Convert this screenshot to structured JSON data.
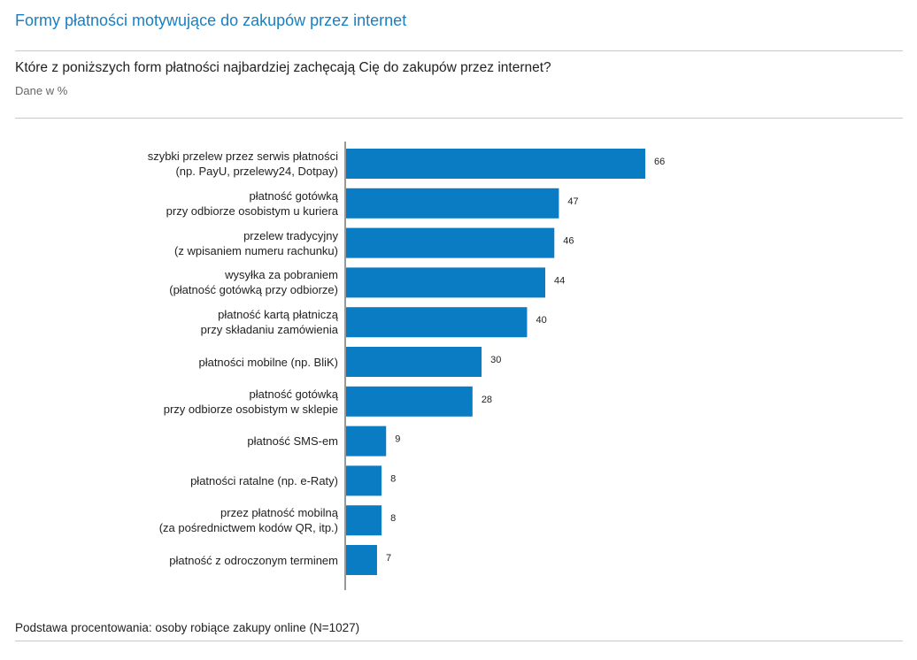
{
  "header": {
    "title": "Formy płatności motywujące do zakupów przez internet"
  },
  "question": "Które z poniższych form płatności najbardziej zachęcają Cię do zakupów przez internet?",
  "footer": "Podstawa procentowania: osoby robiące zakupy online (N=1027)",
  "colors": {
    "bar": "#0a7cc4",
    "title": "#1a7fc0"
  },
  "chart_data": {
    "type": "bar",
    "orientation": "horizontal",
    "subtitle": "Dane w %",
    "categories": [
      [
        "szybki przelew przez serwis płatności",
        "(np. PayU, przelewy24, Dotpay)"
      ],
      [
        "płatność gotówką",
        "przy odbiorze osobistym u kuriera"
      ],
      [
        "przelew tradycyjny",
        "(z wpisaniem numeru rachunku)"
      ],
      [
        "wysyłka za pobraniem",
        "(płatność gotówką przy odbiorze)"
      ],
      [
        "płatność kartą płatniczą",
        "przy składaniu zamówienia"
      ],
      [
        "płatności mobilne (np. BliK)"
      ],
      [
        "płatność gotówką",
        "przy odbiorze osobistym w sklepie"
      ],
      [
        "płatność SMS-em"
      ],
      [
        "płatności ratalne (np. e-Raty)"
      ],
      [
        "przez płatność mobilną",
        "(za pośrednictwem kodów QR, itp.)"
      ],
      [
        "płatność z odroczonym terminem"
      ]
    ],
    "values": [
      66,
      47,
      46,
      44,
      40,
      30,
      28,
      9,
      8,
      8,
      7
    ],
    "xlim": [
      0,
      100
    ],
    "grid": false,
    "legend": "none"
  }
}
